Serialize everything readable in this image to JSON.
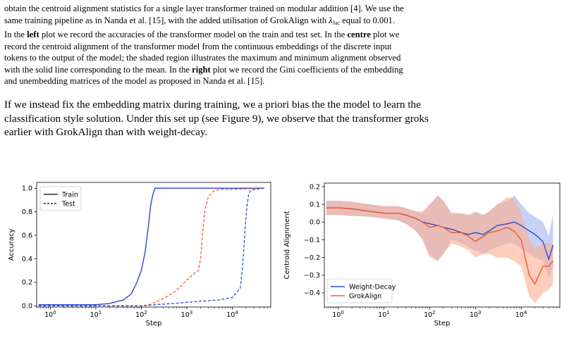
{
  "para1": {
    "line1": "obtain the centroid alignment statistics for a single layer transformer trained on modular addition [4]. We use the",
    "line2_a": "same training pipeline as in Nanda et al. [15], with the added utilisation of GrokAlign with ",
    "lambda_symbol": "λ",
    "lambda_sub": "Jac",
    "line2_b": " equal to 0.001.",
    "line3_a": "In the ",
    "line3_left": "left",
    "line3_b": " plot we record the accuracies of the transformer model on the train and test set. In the ",
    "line3_centre": "centre",
    "line3_c": " plot we",
    "line4": "record the centroid alignment of the transformer model from the continuous embeddings of the discrete input",
    "line5": "tokens to the output of the model; the shaded region illustrates the maximum and minimum alignment observed",
    "line6_a": "with the solid line corresponding to the mean. In the ",
    "line6_right": "right",
    "line6_b": " plot we record the Gini coefficients of the embedding",
    "line7": "and unembedding matrices of the model as proposed in Nanda et al. [15]."
  },
  "para2": {
    "line1": "If we instead fix the embedding matrix during training, we a priori bias the the model to learn the",
    "line2": "classification style solution. Under this set up (see Figure 9), we observe that the transformer groks",
    "line3": "earlier with GrokAlign than with weight-decay."
  },
  "colors": {
    "blue": "#2a4bd7",
    "orange": "#f05a28",
    "orange_fill": "#ffab8e",
    "blue_fill": "#9fb2ee",
    "overlap_fill": "#b8879a"
  },
  "chart_data": [
    {
      "type": "line",
      "xlabel": "Step",
      "ylabel": "Accuracy",
      "xscale": "log",
      "xlim": [
        0.5,
        70000
      ],
      "ylim": [
        -0.01,
        1.05
      ],
      "xticks": [
        {
          "value": 1,
          "base": "10",
          "exp": "0"
        },
        {
          "value": 10,
          "base": "10",
          "exp": "1"
        },
        {
          "value": 100,
          "base": "10",
          "exp": "2"
        },
        {
          "value": 1000,
          "base": "10",
          "exp": "3"
        },
        {
          "value": 10000,
          "base": "10",
          "exp": "4"
        }
      ],
      "yticks": [
        {
          "value": 0,
          "label": "0.0"
        },
        {
          "value": 0.2,
          "label": "0.2"
        },
        {
          "value": 0.4,
          "label": "0.4"
        },
        {
          "value": 0.6,
          "label": "0.6"
        },
        {
          "value": 0.8,
          "label": "0.8"
        },
        {
          "value": 1.0,
          "label": "1.0"
        }
      ],
      "legend": {
        "position": "top-left",
        "entries": [
          {
            "label": "Train",
            "style": "solid"
          },
          {
            "label": "Test",
            "style": "dashed"
          }
        ]
      },
      "series": [
        {
          "model": "orange",
          "split": "train",
          "style": "solid",
          "x": [
            0.55,
            5,
            10,
            20,
            40,
            60,
            80,
            100,
            120,
            140,
            160,
            180,
            200,
            250,
            500,
            1000,
            5000,
            10000,
            50000
          ],
          "y": [
            0.01,
            0.01,
            0.01,
            0.02,
            0.05,
            0.1,
            0.2,
            0.3,
            0.45,
            0.65,
            0.85,
            0.95,
            1.0,
            1.0,
            1.0,
            1.0,
            1.0,
            1.0,
            1.0
          ]
        },
        {
          "model": "blue",
          "split": "train",
          "style": "solid",
          "x": [
            0.55,
            5,
            10,
            20,
            40,
            60,
            80,
            100,
            120,
            140,
            160,
            180,
            200,
            250,
            500,
            1000,
            5000,
            10000,
            50000
          ],
          "y": [
            0.01,
            0.01,
            0.01,
            0.02,
            0.05,
            0.1,
            0.2,
            0.3,
            0.45,
            0.65,
            0.85,
            0.95,
            1.0,
            1.0,
            1.0,
            1.0,
            1.0,
            1.0,
            1.0
          ]
        },
        {
          "model": "orange",
          "split": "test",
          "style": "dashed",
          "x": [
            0.55,
            100,
            150,
            200,
            300,
            500,
            700,
            1000,
            1500,
            1800,
            2000,
            2200,
            2500,
            3000,
            4000,
            6000,
            10000,
            50000
          ],
          "y": [
            0.0,
            0.0,
            0.01,
            0.03,
            0.06,
            0.11,
            0.16,
            0.22,
            0.28,
            0.3,
            0.4,
            0.6,
            0.82,
            0.93,
            0.98,
            0.99,
            0.99,
            1.0
          ]
        },
        {
          "model": "blue",
          "split": "test",
          "style": "dashed",
          "x": [
            0.55,
            100,
            200,
            500,
            1000,
            2000,
            5000,
            10000,
            15000,
            17000,
            19000,
            21000,
            23000,
            25000,
            30000,
            50000
          ],
          "y": [
            0.0,
            0.0,
            0.01,
            0.02,
            0.03,
            0.04,
            0.05,
            0.07,
            0.15,
            0.35,
            0.65,
            0.85,
            0.95,
            0.98,
            0.99,
            1.0
          ]
        }
      ]
    },
    {
      "type": "line",
      "xlabel": "Step",
      "ylabel": "Centroid Alignment",
      "xscale": "log",
      "xlim": [
        0.5,
        70000
      ],
      "ylim": [
        -0.48,
        0.22
      ],
      "xticks": [
        {
          "value": 1,
          "base": "10",
          "exp": "0"
        },
        {
          "value": 10,
          "base": "10",
          "exp": "1"
        },
        {
          "value": 100,
          "base": "10",
          "exp": "2"
        },
        {
          "value": 1000,
          "base": "10",
          "exp": "3"
        },
        {
          "value": 10000,
          "base": "10",
          "exp": "4"
        }
      ],
      "yticks": [
        {
          "value": -0.4,
          "label": "−0.4"
        },
        {
          "value": -0.3,
          "label": "−0.3"
        },
        {
          "value": -0.2,
          "label": "−0.2"
        },
        {
          "value": -0.1,
          "label": "−0.1"
        },
        {
          "value": 0.0,
          "label": "0.0"
        },
        {
          "value": 0.1,
          "label": "0.1"
        },
        {
          "value": 0.2,
          "label": "0.2"
        }
      ],
      "legend": {
        "position": "bottom-left",
        "entries": [
          {
            "label": "Weight-Decay",
            "color": "#2a4bd7"
          },
          {
            "label": "GrokAlign",
            "color": "#f05a28"
          }
        ]
      },
      "series": [
        {
          "name": "Weight-Decay",
          "x": [
            0.55,
            1,
            2,
            5,
            10,
            20,
            30,
            50,
            70,
            100,
            150,
            200,
            300,
            500,
            700,
            1000,
            1500,
            2000,
            3000,
            5000,
            7000,
            10000,
            15000,
            20000,
            30000,
            40000,
            50000
          ],
          "mean": [
            0.08,
            0.08,
            0.075,
            0.06,
            0.05,
            0.05,
            0.04,
            0.02,
            0.0,
            -0.01,
            -0.02,
            -0.03,
            -0.04,
            -0.06,
            -0.07,
            -0.06,
            -0.07,
            -0.05,
            -0.02,
            -0.01,
            0.0,
            -0.02,
            -0.05,
            -0.07,
            -0.11,
            -0.21,
            -0.13
          ],
          "max": [
            0.12,
            0.12,
            0.115,
            0.1,
            0.09,
            0.09,
            0.08,
            0.06,
            0.05,
            0.1,
            0.15,
            0.12,
            0.05,
            0.05,
            0.04,
            0.06,
            0.04,
            0.06,
            0.1,
            0.12,
            0.15,
            0.1,
            0.05,
            0.03,
            0.0,
            -0.08,
            0.05
          ],
          "min": [
            0.04,
            0.04,
            0.035,
            0.03,
            0.02,
            0.01,
            -0.01,
            -0.05,
            -0.1,
            -0.18,
            -0.22,
            -0.18,
            -0.1,
            -0.12,
            -0.14,
            -0.16,
            -0.18,
            -0.16,
            -0.14,
            -0.12,
            -0.12,
            -0.15,
            -0.18,
            -0.2,
            -0.22,
            -0.32,
            -0.25
          ]
        },
        {
          "name": "GrokAlign",
          "x": [
            0.55,
            1,
            2,
            5,
            10,
            20,
            30,
            50,
            70,
            100,
            150,
            200,
            300,
            500,
            700,
            1000,
            1500,
            2000,
            3000,
            5000,
            7000,
            10000,
            15000,
            20000,
            30000,
            40000,
            50000
          ],
          "mean": [
            0.08,
            0.08,
            0.075,
            0.06,
            0.05,
            0.05,
            0.04,
            0.02,
            0.0,
            -0.03,
            -0.02,
            -0.03,
            -0.06,
            -0.06,
            -0.08,
            -0.11,
            -0.08,
            -0.06,
            -0.05,
            -0.03,
            -0.05,
            -0.1,
            -0.3,
            -0.35,
            -0.25,
            -0.25,
            -0.22
          ],
          "max": [
            0.12,
            0.12,
            0.115,
            0.1,
            0.09,
            0.09,
            0.08,
            0.06,
            0.06,
            0.1,
            0.15,
            0.12,
            0.05,
            0.05,
            0.04,
            0.05,
            0.04,
            0.06,
            0.1,
            0.14,
            0.13,
            0.05,
            -0.1,
            -0.15,
            -0.12,
            -0.12,
            -0.12
          ],
          "min": [
            0.04,
            0.04,
            0.035,
            0.03,
            0.02,
            0.01,
            -0.01,
            -0.05,
            -0.1,
            -0.2,
            -0.22,
            -0.18,
            -0.12,
            -0.14,
            -0.16,
            -0.2,
            -0.18,
            -0.18,
            -0.2,
            -0.2,
            -0.22,
            -0.25,
            -0.42,
            -0.46,
            -0.4,
            -0.38,
            -0.35
          ]
        }
      ]
    }
  ]
}
